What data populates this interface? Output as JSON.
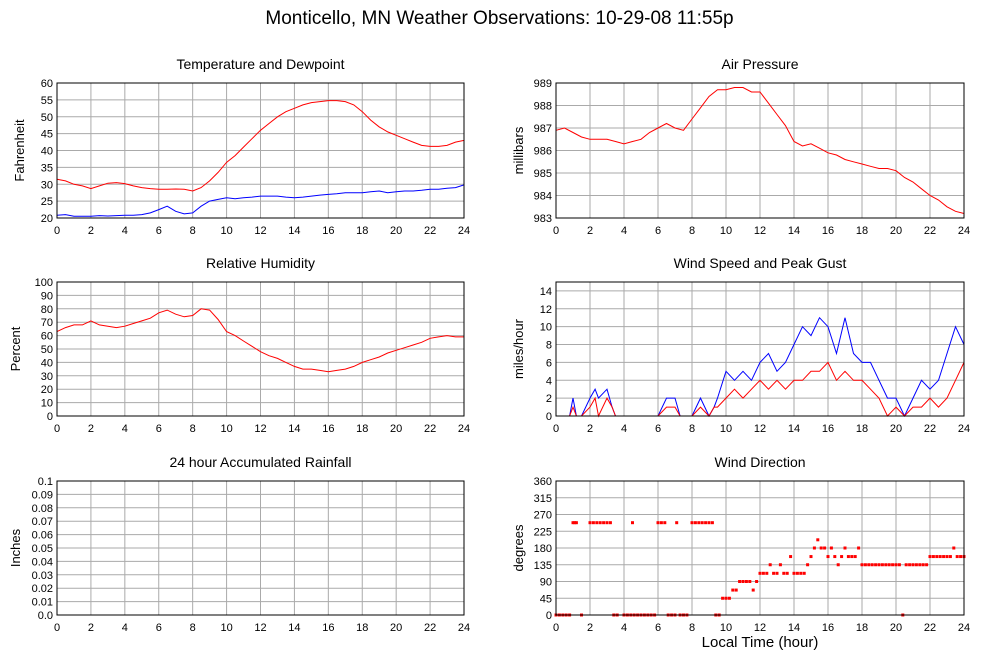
{
  "page": {
    "title": "Monticello, MN Weather Observations: 10-29-08 11:55p",
    "x_caption": "Local Time (hour)"
  },
  "colors": {
    "red": "#ff0000",
    "blue": "#0000ff",
    "grid": "#aaaaaa",
    "frame": "#000000"
  },
  "chart_data": [
    {
      "id": "temp",
      "type": "line",
      "title": "Temperature and Dewpoint",
      "ylabel": "Fahrenheit",
      "xlabel": "",
      "xlim": [
        0,
        24
      ],
      "ylim": [
        20,
        60
      ],
      "x_ticks": [
        0,
        2,
        4,
        6,
        8,
        10,
        12,
        14,
        16,
        18,
        20,
        22,
        24
      ],
      "y_ticks": [
        20,
        25,
        30,
        35,
        40,
        45,
        50,
        55,
        60
      ],
      "y_tick_labels": [
        "20",
        "25",
        "30",
        "35",
        "40",
        "45",
        "50",
        "55",
        "60"
      ],
      "grid": true,
      "series": [
        {
          "color": "#ff0000",
          "x": [
            0,
            0.5,
            1,
            1.5,
            2,
            2.5,
            3,
            3.5,
            4,
            4.5,
            5,
            5.5,
            6,
            6.5,
            7,
            7.5,
            8,
            8.5,
            9,
            9.5,
            10,
            10.5,
            11,
            11.5,
            12,
            12.5,
            13,
            13.5,
            14,
            14.5,
            15,
            15.5,
            16,
            16.5,
            17,
            17.5,
            18,
            18.5,
            19,
            19.5,
            20,
            20.5,
            21,
            21.5,
            22,
            22.5,
            23,
            23.5,
            24
          ],
          "y": [
            31.5,
            31,
            30,
            29.5,
            28.7,
            29.5,
            30.3,
            30.5,
            30.2,
            29.5,
            29,
            28.7,
            28.5,
            28.5,
            28.6,
            28.5,
            28,
            29,
            31,
            33.5,
            36.5,
            38.5,
            41,
            43.5,
            46,
            48,
            50,
            51.5,
            52.5,
            53.5,
            54.2,
            54.5,
            54.8,
            54.8,
            54.5,
            53.5,
            51.5,
            49,
            47,
            45.5,
            44.5,
            43.5,
            42.5,
            41.5,
            41.2,
            41.2,
            41.5,
            42.5,
            43
          ]
        },
        {
          "color": "#0000ff",
          "x": [
            0,
            0.5,
            1,
            1.5,
            2,
            2.5,
            3,
            3.5,
            4,
            4.5,
            5,
            5.5,
            6,
            6.5,
            7,
            7.5,
            8,
            8.5,
            9,
            9.5,
            10,
            10.5,
            11,
            11.5,
            12,
            12.5,
            13,
            13.5,
            14,
            14.5,
            15,
            15.5,
            16,
            16.5,
            17,
            17.5,
            18,
            18.5,
            19,
            19.5,
            20,
            20.5,
            21,
            21.5,
            22,
            22.5,
            23,
            23.5,
            24
          ],
          "y": [
            20.8,
            21,
            20.5,
            20.5,
            20.5,
            20.7,
            20.6,
            20.7,
            20.8,
            20.8,
            21,
            21.5,
            22.5,
            23.5,
            22,
            21.2,
            21.5,
            23.5,
            25,
            25.5,
            26,
            25.7,
            26,
            26.2,
            26.5,
            26.5,
            26.5,
            26.2,
            26,
            26.2,
            26.5,
            26.8,
            27,
            27.2,
            27.5,
            27.5,
            27.5,
            27.8,
            28,
            27.5,
            27.8,
            28,
            28,
            28.2,
            28.5,
            28.5,
            28.8,
            29,
            29.8
          ]
        }
      ]
    },
    {
      "id": "pressure",
      "type": "line",
      "title": "Air Pressure",
      "ylabel": "millibars",
      "xlabel": "",
      "xlim": [
        0,
        24
      ],
      "ylim": [
        983,
        989
      ],
      "x_ticks": [
        0,
        2,
        4,
        6,
        8,
        10,
        12,
        14,
        16,
        18,
        20,
        22,
        24
      ],
      "y_ticks": [
        983,
        984,
        985,
        986,
        987,
        988,
        989
      ],
      "y_tick_labels": [
        "983",
        "984",
        "985",
        "986",
        "987",
        "988",
        "989"
      ],
      "grid": true,
      "series": [
        {
          "color": "#ff0000",
          "x": [
            0,
            0.5,
            1,
            1.5,
            2,
            2.5,
            3,
            3.5,
            4,
            4.5,
            5,
            5.5,
            6,
            6.5,
            7,
            7.5,
            8,
            8.5,
            9,
            9.5,
            10,
            10.5,
            11,
            11.5,
            12,
            12.5,
            13,
            13.5,
            14,
            14.5,
            15,
            15.5,
            16,
            16.5,
            17,
            17.5,
            18,
            18.5,
            19,
            19.5,
            20,
            20.5,
            21,
            21.5,
            22,
            22.5,
            23,
            23.5,
            24
          ],
          "y": [
            986.9,
            987.0,
            986.8,
            986.6,
            986.5,
            986.5,
            986.5,
            986.4,
            986.3,
            986.4,
            986.5,
            986.8,
            987.0,
            987.2,
            987.0,
            986.9,
            987.4,
            987.9,
            988.4,
            988.7,
            988.7,
            988.8,
            988.8,
            988.6,
            988.6,
            988.1,
            987.6,
            987.1,
            986.4,
            986.2,
            986.3,
            986.1,
            985.9,
            985.8,
            985.6,
            985.5,
            985.4,
            985.3,
            985.2,
            985.2,
            985.1,
            984.8,
            984.6,
            984.3,
            984.0,
            983.8,
            983.5,
            983.3,
            983.2
          ]
        }
      ]
    },
    {
      "id": "humidity",
      "type": "line",
      "title": "Relative Humidity",
      "ylabel": "Percent",
      "xlabel": "",
      "xlim": [
        0,
        24
      ],
      "ylim": [
        0,
        100
      ],
      "x_ticks": [
        0,
        2,
        4,
        6,
        8,
        10,
        12,
        14,
        16,
        18,
        20,
        22,
        24
      ],
      "y_ticks": [
        0,
        10,
        20,
        30,
        40,
        50,
        60,
        70,
        80,
        90,
        100
      ],
      "y_tick_labels": [
        "0",
        "10",
        "20",
        "30",
        "40",
        "50",
        "60",
        "70",
        "80",
        "90",
        "100"
      ],
      "grid": true,
      "series": [
        {
          "color": "#ff0000",
          "x": [
            0,
            0.5,
            1,
            1.5,
            2,
            2.5,
            3,
            3.5,
            4,
            4.5,
            5,
            5.5,
            6,
            6.5,
            7,
            7.5,
            8,
            8.5,
            9,
            9.5,
            10,
            10.5,
            11,
            11.5,
            12,
            12.5,
            13,
            13.5,
            14,
            14.5,
            15,
            15.5,
            16,
            16.5,
            17,
            17.5,
            18,
            18.5,
            19,
            19.5,
            20,
            20.5,
            21,
            21.5,
            22,
            22.5,
            23,
            23.5,
            24
          ],
          "y": [
            63,
            66,
            68,
            68,
            71,
            68,
            67,
            66,
            67,
            69,
            71,
            73,
            77,
            79,
            76,
            74,
            75,
            80,
            79,
            72,
            63,
            60,
            56,
            52,
            48,
            45,
            43,
            40,
            37,
            35,
            35,
            34,
            33,
            34,
            35,
            37,
            40,
            42,
            44,
            47,
            49,
            51,
            53,
            55,
            58,
            59,
            60,
            59,
            59
          ]
        }
      ]
    },
    {
      "id": "wind",
      "type": "line",
      "title": "Wind Speed and Peak Gust",
      "ylabel": "miles/hour",
      "xlabel": "",
      "xlim": [
        0,
        24
      ],
      "ylim": [
        0,
        15
      ],
      "x_ticks": [
        0,
        2,
        4,
        6,
        8,
        10,
        12,
        14,
        16,
        18,
        20,
        22,
        24
      ],
      "y_ticks": [
        0,
        2,
        4,
        6,
        8,
        10,
        12,
        14
      ],
      "y_tick_labels": [
        "0",
        "2",
        "4",
        "6",
        "8",
        "10",
        "12",
        "14"
      ],
      "grid": true,
      "series": [
        {
          "color": "#0000ff",
          "x": [
            0,
            0.8,
            1,
            1.2,
            1.5,
            2,
            2.3,
            2.5,
            3,
            3.3,
            3.5,
            4,
            5,
            6,
            6.5,
            7,
            7.3,
            7.5,
            8,
            8.5,
            9,
            9.3,
            9.5,
            10,
            10.5,
            11,
            11.5,
            12,
            12.5,
            13,
            13.5,
            14,
            14.5,
            15,
            15.5,
            16,
            16.5,
            17,
            17.5,
            18,
            18.5,
            19,
            19.5,
            20,
            20.5,
            21,
            21.5,
            22,
            22.5,
            23,
            23.5,
            24
          ],
          "y": [
            0,
            0,
            2,
            0,
            0,
            2,
            3,
            2,
            3,
            1,
            0,
            0,
            0,
            0,
            2,
            2,
            0,
            0,
            0,
            2,
            0,
            1,
            2,
            5,
            4,
            5,
            4,
            6,
            7,
            5,
            6,
            8,
            10,
            9,
            11,
            10,
            7,
            11,
            7,
            6,
            6,
            4,
            2,
            2,
            0,
            2,
            4,
            3,
            4,
            7,
            10,
            8
          ]
        },
        {
          "color": "#ff0000",
          "x": [
            0,
            0.8,
            1,
            1.2,
            1.5,
            2,
            2.3,
            2.5,
            3,
            3.3,
            3.5,
            4,
            5,
            6,
            6.5,
            7,
            7.3,
            7.5,
            8,
            8.5,
            9,
            9.3,
            9.5,
            10,
            10.5,
            11,
            11.5,
            12,
            12.5,
            13,
            13.5,
            14,
            14.5,
            15,
            15.5,
            16,
            16.5,
            17,
            17.5,
            18,
            18.5,
            19,
            19.5,
            20,
            20.5,
            21,
            21.5,
            22,
            22.5,
            23,
            23.5,
            24
          ],
          "y": [
            0,
            0,
            1,
            0,
            0,
            1,
            2,
            0,
            2,
            1,
            0,
            0,
            0,
            0,
            1,
            1,
            0,
            0,
            0,
            1,
            0,
            1,
            1,
            2,
            3,
            2,
            3,
            4,
            3,
            4,
            3,
            4,
            4,
            5,
            5,
            6,
            4,
            5,
            4,
            4,
            3,
            2,
            0,
            1,
            0,
            1,
            1,
            2,
            1,
            2,
            4,
            6
          ]
        }
      ]
    },
    {
      "id": "rain",
      "type": "line",
      "title": "24 hour Accumulated Rainfall",
      "ylabel": "Inches",
      "xlabel": "",
      "xlim": [
        0,
        24
      ],
      "ylim": [
        0,
        0.1
      ],
      "x_ticks": [
        0,
        2,
        4,
        6,
        8,
        10,
        12,
        14,
        16,
        18,
        20,
        22,
        24
      ],
      "y_ticks": [
        0,
        0.01,
        0.02,
        0.03,
        0.04,
        0.05,
        0.06,
        0.07,
        0.08,
        0.09,
        0.1
      ],
      "y_tick_labels": [
        "0.0",
        "0.01",
        "0.02",
        "0.03",
        "0.04",
        "0.05",
        "0.06",
        "0.07",
        "0.08",
        "0.09",
        "0.1"
      ],
      "grid": true,
      "series": [
        {
          "color": "#ff0000",
          "x": [
            0,
            24
          ],
          "y": [
            0,
            0
          ]
        }
      ]
    },
    {
      "id": "direction",
      "type": "scatter",
      "title": "Wind Direction",
      "ylabel": "degrees",
      "xlabel": "Local Time (hour)",
      "xlim": [
        0,
        24
      ],
      "ylim": [
        0,
        360
      ],
      "x_ticks": [
        0,
        2,
        4,
        6,
        8,
        10,
        12,
        14,
        16,
        18,
        20,
        22,
        24
      ],
      "y_ticks": [
        0,
        45,
        90,
        135,
        180,
        225,
        270,
        315,
        360
      ],
      "y_tick_labels": [
        "0",
        "45",
        "90",
        "135",
        "180",
        "225",
        "270",
        "315",
        "360"
      ],
      "grid": true,
      "series": [
        {
          "color": "#ff0000",
          "x": [
            0,
            0.2,
            0.4,
            0.6,
            0.8,
            1,
            1.1,
            1.2,
            1.5,
            2,
            2.2,
            2.4,
            2.6,
            2.8,
            3,
            3.2,
            3.4,
            3.6,
            4,
            4.2,
            4.4,
            4.5,
            4.6,
            4.8,
            5,
            5.2,
            5.4,
            5.6,
            5.8,
            6,
            6.2,
            6.4,
            6.6,
            6.8,
            7,
            7.1,
            7.3,
            7.5,
            7.7,
            8,
            8.2,
            8.4,
            8.6,
            8.8,
            9,
            9.2,
            9.4,
            9.6,
            9.8,
            10,
            10.2,
            10.4,
            10.6,
            10.8,
            11,
            11.2,
            11.4,
            11.6,
            11.8,
            12,
            12.2,
            12.4,
            12.6,
            12.8,
            13,
            13.2,
            13.4,
            13.6,
            13.8,
            14,
            14.2,
            14.4,
            14.6,
            14.8,
            15,
            15.2,
            15.4,
            15.6,
            15.8,
            16,
            16.2,
            16.4,
            16.6,
            16.8,
            17,
            17.2,
            17.4,
            17.6,
            17.8,
            18,
            18.2,
            18.4,
            18.6,
            18.8,
            19,
            19.2,
            19.4,
            19.6,
            19.8,
            20,
            20.2,
            20.4,
            20.6,
            20.8,
            21,
            21.2,
            21.4,
            21.6,
            21.8,
            22,
            22.2,
            22.4,
            22.6,
            22.8,
            23,
            23.2,
            23.4,
            23.6,
            23.8,
            24
          ],
          "y": [
            0,
            0,
            0,
            0,
            0,
            248,
            248,
            248,
            0,
            248,
            248,
            248,
            248,
            248,
            248,
            248,
            0,
            0,
            0,
            0,
            0,
            248,
            0,
            0,
            0,
            0,
            0,
            0,
            0,
            248,
            248,
            248,
            0,
            0,
            0,
            248,
            0,
            0,
            0,
            248,
            248,
            248,
            248,
            248,
            248,
            248,
            0,
            0,
            45,
            45,
            45,
            67,
            67,
            90,
            90,
            90,
            90,
            67,
            90,
            112,
            112,
            112,
            135,
            112,
            112,
            135,
            112,
            112,
            157,
            112,
            112,
            112,
            112,
            135,
            157,
            180,
            202,
            180,
            180,
            157,
            180,
            157,
            135,
            157,
            180,
            157,
            157,
            157,
            180,
            135,
            135,
            135,
            135,
            135,
            135,
            135,
            135,
            135,
            135,
            135,
            135,
            0,
            135,
            135,
            135,
            135,
            135,
            135,
            135,
            157,
            157,
            157,
            157,
            157,
            157,
            157,
            180,
            157,
            157,
            157
          ]
        }
      ]
    }
  ]
}
